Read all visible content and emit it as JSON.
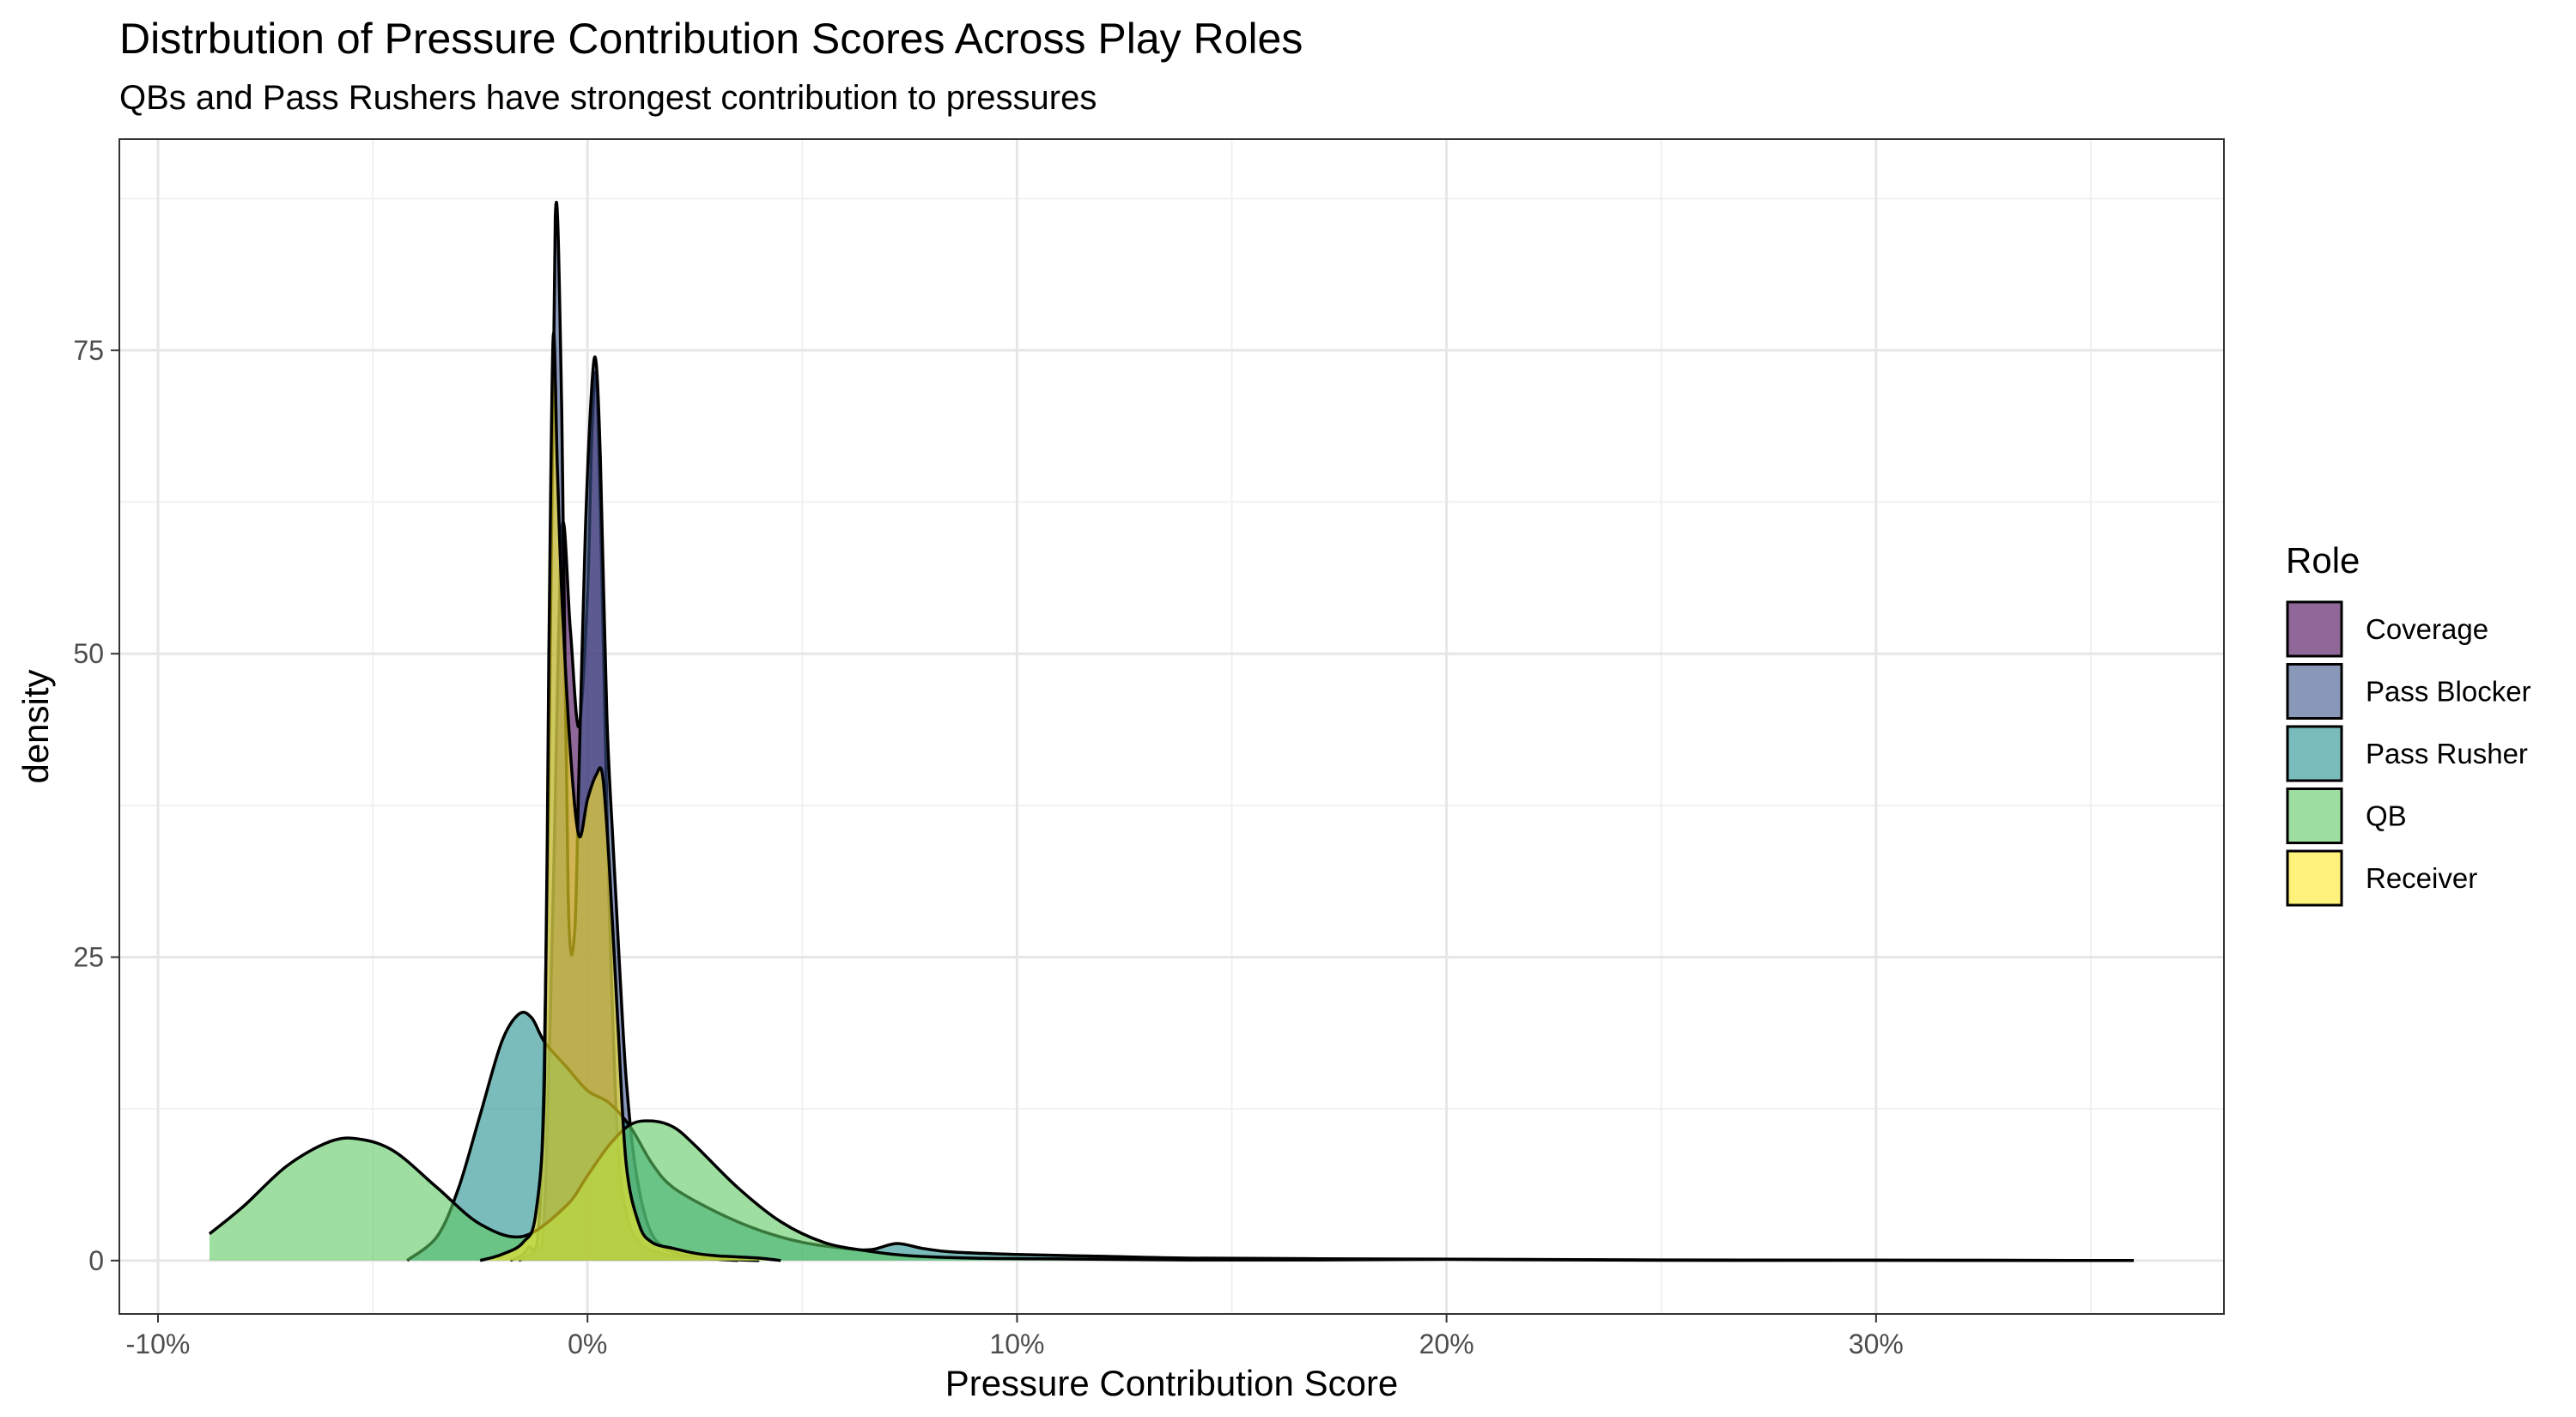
{
  "chart_data": {
    "type": "area",
    "title": "Distrbution of Pressure Contribution Scores Across Play Roles",
    "subtitle": "QBs and Pass Rushers have strongest contribution to pressures",
    "xlabel": "Pressure Contribution Score",
    "ylabel": "density",
    "xlim": [
      -10.9,
      38.1
    ],
    "ylim": [
      -4.4,
      92.4
    ],
    "x_ticks": [
      -10,
      0,
      10,
      20,
      30
    ],
    "x_tick_labels": [
      "-10%",
      "0%",
      "10%",
      "20%",
      "30%"
    ],
    "y_ticks": [
      0,
      25,
      50,
      75
    ],
    "y_tick_labels": [
      "0",
      "25",
      "50",
      "75"
    ],
    "grid": true,
    "legend": {
      "title": "Role",
      "position": "right"
    },
    "series": [
      {
        "name": "Coverage",
        "color": "#440154",
        "x": [
          -1.6,
          -1.2,
          -1.0,
          -0.8,
          -0.6,
          -0.4,
          -0.2,
          0.0,
          0.1,
          0.2,
          0.3,
          0.5,
          0.7,
          0.9,
          1.2,
          1.8,
          2.5,
          4.0
        ],
        "y": [
          0,
          1,
          4,
          30,
          60,
          52,
          44,
          55,
          68,
          73,
          62,
          30,
          10,
          4,
          1.5,
          0.5,
          0.2,
          0
        ]
      },
      {
        "name": "Pass Blocker",
        "color": "#3b528b",
        "x": [
          -1.8,
          -1.4,
          -1.1,
          -0.9,
          -0.75,
          -0.6,
          -0.45,
          -0.3,
          -0.2,
          -0.05,
          0.1,
          0.2,
          0.3,
          0.45,
          0.6,
          0.75,
          0.9,
          1.1,
          1.4,
          1.8,
          2.5,
          3.5
        ],
        "y": [
          0,
          1,
          5,
          40,
          86,
          70,
          30,
          27,
          40,
          60,
          72,
          74,
          66,
          45,
          34,
          24,
          15,
          8,
          3,
          1,
          0.3,
          0
        ]
      },
      {
        "name": "Pass Rusher",
        "color": "#21908d",
        "x": [
          -4.2,
          -3.5,
          -3.0,
          -2.5,
          -2.0,
          -1.6,
          -1.3,
          -1.0,
          -0.5,
          0.0,
          0.5,
          1.0,
          1.5,
          2.0,
          3.0,
          4.0,
          5.0,
          6.0,
          6.6,
          7.2,
          7.8,
          8.5,
          10.0,
          12.0,
          14.0,
          17.0,
          21.0,
          25.0,
          30.0,
          36.0
        ],
        "y": [
          0,
          2,
          6,
          12,
          18,
          20.3,
          20,
          18,
          16,
          14,
          13,
          11,
          8,
          6,
          4,
          2.5,
          1.5,
          1,
          0.9,
          1.4,
          1.0,
          0.7,
          0.5,
          0.35,
          0.2,
          0.15,
          0.1,
          0.05,
          0.03,
          0
        ]
      },
      {
        "name": "QB",
        "color": "#5dc963",
        "x": [
          -8.8,
          -8.0,
          -7.0,
          -6.0,
          -5.3,
          -4.5,
          -3.5,
          -2.5,
          -1.5,
          -0.5,
          0.0,
          0.5,
          1.0,
          1.5,
          2.0,
          2.5,
          3.5,
          4.5,
          5.5,
          6.5,
          7.5,
          9.0,
          10.5,
          12.0,
          14.0,
          17.0,
          20.0,
          25.0,
          30.0,
          36.0
        ],
        "y": [
          2.2,
          4.5,
          7.8,
          9.8,
          10.0,
          9.0,
          6.0,
          3.0,
          2.0,
          4.5,
          7.0,
          9.5,
          11.2,
          11.5,
          11.0,
          9.5,
          6.0,
          3.2,
          1.5,
          0.8,
          0.4,
          0.2,
          0.15,
          0.1,
          0.05,
          0.05,
          0.1,
          0.02,
          0.02,
          0
        ]
      },
      {
        "name": "Receiver",
        "color": "#fde725",
        "x": [
          -2.5,
          -2.0,
          -1.5,
          -1.2,
          -1.0,
          -0.9,
          -0.8,
          -0.7,
          -0.6,
          -0.4,
          -0.2,
          0.0,
          0.2,
          0.35,
          0.5,
          0.7,
          0.9,
          1.2,
          1.5,
          2.0,
          2.5,
          3.0,
          3.5,
          4.0,
          4.5
        ],
        "y": [
          0,
          0.5,
          1.5,
          4,
          15,
          50,
          76,
          65,
          55,
          42,
          35,
          38,
          40,
          40,
          33,
          20,
          8,
          3,
          1.5,
          1,
          0.6,
          0.4,
          0.3,
          0.2,
          0
        ]
      }
    ]
  }
}
